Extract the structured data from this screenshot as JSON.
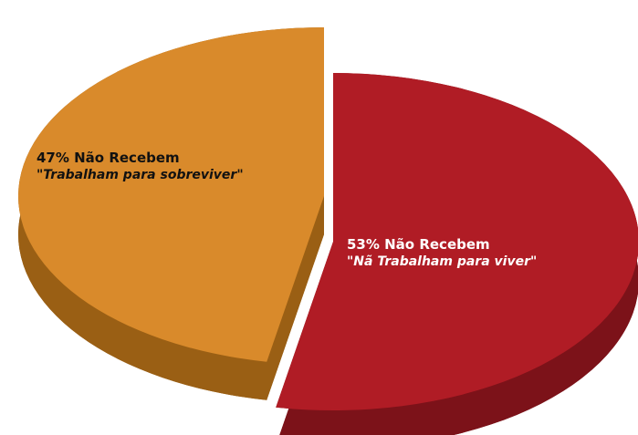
{
  "chart_data": {
    "type": "pie",
    "title": "",
    "slices": [
      {
        "label": "47% Não Recebem",
        "sublabel": "\"Trabalham para sobreviver\"",
        "value": 47,
        "color": "#d98a2b",
        "side_color": "#9a5f14",
        "text_color": "#111111"
      },
      {
        "label": "53% Não Recebem",
        "sublabel": "\"Nã Trabalham para viver\"",
        "value": 53,
        "color": "#b01c25",
        "side_color": "#7c1219",
        "text_color": "#ffffff"
      }
    ]
  }
}
